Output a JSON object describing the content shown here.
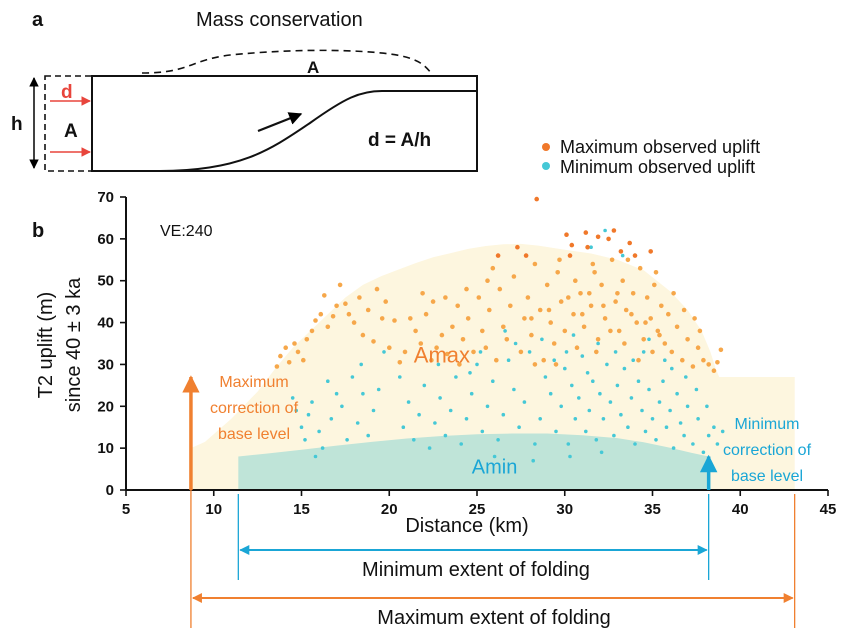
{
  "panel_a": {
    "label": "a",
    "title": "Mass conservation",
    "eq": "d = A/h",
    "lbl_h": "h",
    "lbl_d": "d",
    "lbl_A_left": "A",
    "lbl_A_top": "A"
  },
  "legend": {
    "max": "Maximum observed uplift",
    "min": "Minimum observed uplift"
  },
  "colors": {
    "max_points": "#f6a74a",
    "max_points_dark": "#f0782a",
    "min_points": "#45c8d6",
    "amax_fill": "#fdf6df",
    "amin_fill": "#bfe4d8",
    "orange": "#f08030",
    "cyan": "#1aa6d6",
    "red": "#e8453c"
  },
  "chart_data": {
    "type": "scatter",
    "panel_label": "b",
    "ylabel_line1": "T2 uplift (m)",
    "ylabel_line2": "since 40 ± 3 ka",
    "xlabel": "Distance (km)",
    "xlim": [
      5,
      45
    ],
    "ylim": [
      0,
      70
    ],
    "xticks": [
      5,
      10,
      15,
      20,
      25,
      30,
      35,
      40,
      45
    ],
    "yticks": [
      0,
      10,
      20,
      30,
      40,
      50,
      60,
      70
    ],
    "ve_label": "VE:240",
    "region_labels": {
      "amax": "Amax",
      "amin": "Amin"
    },
    "annotations": {
      "max_correction": [
        "Maximum",
        "correction of",
        "base level"
      ],
      "min_correction": [
        "Minimum",
        "correction of",
        "base level"
      ],
      "min_extent": "Minimum extent of folding",
      "max_extent": "Maximum extent of folding"
    },
    "max_extent_km": [
      8.7,
      43.1
    ],
    "min_extent_km": [
      11.4,
      38.2
    ],
    "max_correction_m": 27,
    "min_correction_m": 8,
    "amax_envelope": [
      [
        8.7,
        0
      ],
      [
        8.7,
        10
      ],
      [
        9.5,
        11.5
      ],
      [
        11,
        17
      ],
      [
        12.5,
        23.5
      ],
      [
        13.5,
        29
      ],
      [
        14.5,
        34
      ],
      [
        15.5,
        38
      ],
      [
        16.5,
        42
      ],
      [
        17.5,
        46
      ],
      [
        18.5,
        49
      ],
      [
        19.5,
        51
      ],
      [
        20.5,
        52.6
      ],
      [
        21.5,
        54.2
      ],
      [
        22.5,
        55.6
      ],
      [
        23.5,
        56.6
      ],
      [
        24.5,
        57.6
      ],
      [
        25.5,
        58.3
      ],
      [
        26.5,
        58.7
      ],
      [
        27.5,
        58.8
      ],
      [
        28.5,
        58.4
      ],
      [
        30,
        57.4
      ],
      [
        31.5,
        56.5
      ],
      [
        33,
        55
      ],
      [
        34.5,
        52.5
      ],
      [
        36,
        47.5
      ],
      [
        37,
        43
      ],
      [
        37.8,
        38
      ],
      [
        38.3,
        33
      ],
      [
        38.6,
        29
      ],
      [
        38.8,
        27
      ],
      [
        43.1,
        27
      ],
      [
        43.1,
        0
      ]
    ],
    "amin_envelope": [
      [
        11.4,
        0
      ],
      [
        11.4,
        8
      ],
      [
        13,
        8.7
      ],
      [
        15,
        9.6
      ],
      [
        17,
        10.6
      ],
      [
        19,
        11.5
      ],
      [
        21,
        12.3
      ],
      [
        23,
        12.9
      ],
      [
        25,
        13.3
      ],
      [
        27,
        13.5
      ],
      [
        29,
        13.5
      ],
      [
        31,
        13.1
      ],
      [
        33,
        12.4
      ],
      [
        34.5,
        11.4
      ],
      [
        36,
        10.1
      ],
      [
        37.2,
        8.9
      ],
      [
        38.2,
        8
      ],
      [
        38.2,
        0
      ]
    ],
    "series": [
      {
        "name": "Maximum observed uplift",
        "points": [
          [
            13.6,
            29.5
          ],
          [
            13.8,
            32
          ],
          [
            14.1,
            34
          ],
          [
            14.3,
            30.5
          ],
          [
            14.6,
            35
          ],
          [
            14.8,
            33
          ],
          [
            15.1,
            31
          ],
          [
            15.3,
            36
          ],
          [
            15.6,
            38
          ],
          [
            15.8,
            40.5
          ],
          [
            16.1,
            42
          ],
          [
            16.3,
            46.5
          ],
          [
            16.5,
            39
          ],
          [
            16.8,
            41.5
          ],
          [
            17,
            44
          ],
          [
            17.2,
            49
          ],
          [
            17.5,
            44.5
          ],
          [
            17.7,
            42
          ],
          [
            18,
            40
          ],
          [
            18.3,
            46
          ],
          [
            18.5,
            37
          ],
          [
            18.8,
            43
          ],
          [
            19.1,
            35.5
          ],
          [
            19.3,
            48
          ],
          [
            19.6,
            41
          ],
          [
            20.3,
            40.5
          ],
          [
            20.6,
            30.5
          ],
          [
            20.9,
            33
          ],
          [
            21.2,
            41
          ],
          [
            21.5,
            38
          ],
          [
            21.8,
            35
          ],
          [
            22.1,
            42
          ],
          [
            22.4,
            31
          ],
          [
            22.7,
            34
          ],
          [
            23,
            37
          ],
          [
            23.3,
            32.5
          ],
          [
            23.6,
            39
          ],
          [
            23.9,
            44
          ],
          [
            24.2,
            36
          ],
          [
            24.5,
            41
          ],
          [
            24.8,
            33
          ],
          [
            25.1,
            46
          ],
          [
            25.3,
            38
          ],
          [
            25.5,
            34
          ],
          [
            25.7,
            43
          ],
          [
            25.9,
            53
          ],
          [
            26.1,
            31
          ],
          [
            26.3,
            48
          ],
          [
            26.5,
            39
          ],
          [
            26.7,
            36
          ],
          [
            26.9,
            44
          ],
          [
            27.1,
            51
          ],
          [
            27.3,
            58
          ],
          [
            27.5,
            33
          ],
          [
            27.7,
            41
          ],
          [
            27.9,
            46
          ],
          [
            28.1,
            37
          ],
          [
            28.3,
            54
          ],
          [
            28.4,
            69.5
          ],
          [
            28.6,
            43
          ],
          [
            28.8,
            31
          ],
          [
            29,
            49
          ],
          [
            29.2,
            40
          ],
          [
            29.4,
            35
          ],
          [
            29.6,
            52
          ],
          [
            29.8,
            45
          ],
          [
            30,
            38
          ],
          [
            30.1,
            61
          ],
          [
            30.3,
            56
          ],
          [
            30.5,
            42
          ],
          [
            30.7,
            34
          ],
          [
            30.9,
            47
          ],
          [
            31.1,
            39
          ],
          [
            31.3,
            58
          ],
          [
            31.5,
            44
          ],
          [
            31.7,
            52
          ],
          [
            31.9,
            36
          ],
          [
            32.1,
            49
          ],
          [
            32.3,
            41
          ],
          [
            32.5,
            60
          ],
          [
            32.7,
            55
          ],
          [
            32.9,
            45
          ],
          [
            33.1,
            38
          ],
          [
            33.3,
            50
          ],
          [
            33.5,
            43
          ],
          [
            33.7,
            59
          ],
          [
            33.9,
            47
          ],
          [
            34.1,
            40
          ],
          [
            34.3,
            53
          ],
          [
            34.5,
            36
          ],
          [
            34.7,
            46
          ],
          [
            34.9,
            41
          ],
          [
            35.1,
            49
          ],
          [
            35.3,
            38
          ],
          [
            35.5,
            44
          ],
          [
            35.7,
            35
          ],
          [
            35.9,
            42
          ],
          [
            36.1,
            33
          ],
          [
            36.4,
            39
          ],
          [
            36.7,
            31
          ],
          [
            37,
            36
          ],
          [
            37.3,
            29.5
          ],
          [
            37.6,
            34
          ],
          [
            37.9,
            31
          ],
          [
            38.2,
            30
          ],
          [
            38.5,
            28.5
          ],
          [
            28.1,
            41
          ],
          [
            28.3,
            30
          ],
          [
            29.1,
            43
          ],
          [
            29.5,
            30
          ],
          [
            30.2,
            46
          ],
          [
            30.6,
            50
          ],
          [
            31,
            42
          ],
          [
            31.4,
            47
          ],
          [
            31.8,
            33
          ],
          [
            32.2,
            44
          ],
          [
            32.6,
            38
          ],
          [
            33,
            47
          ],
          [
            33.4,
            35
          ],
          [
            33.8,
            42
          ],
          [
            34.2,
            31
          ],
          [
            34.6,
            40
          ],
          [
            35,
            33
          ],
          [
            35.4,
            37
          ],
          [
            24,
            30
          ],
          [
            22.5,
            45
          ],
          [
            20,
            34
          ],
          [
            26.2,
            56
          ],
          [
            29.7,
            55
          ],
          [
            31.6,
            54
          ],
          [
            33.2,
            57
          ],
          [
            34,
            56
          ],
          [
            35.2,
            52
          ],
          [
            36.2,
            47
          ],
          [
            36.8,
            43
          ],
          [
            37.4,
            41
          ],
          [
            37.7,
            38
          ],
          [
            38.7,
            30.5
          ],
          [
            38.9,
            33.5
          ],
          [
            32.8,
            62
          ],
          [
            31.2,
            61.5
          ],
          [
            34.9,
            57
          ],
          [
            33.6,
            55
          ],
          [
            31.9,
            60.5
          ],
          [
            30.4,
            58.5
          ],
          [
            27.8,
            56
          ],
          [
            25.6,
            50
          ],
          [
            24.4,
            48
          ],
          [
            23.2,
            46
          ],
          [
            21.9,
            47
          ],
          [
            19.8,
            45
          ]
        ]
      },
      {
        "name": "Minimum observed uplift",
        "points": [
          [
            14.5,
            22
          ],
          [
            14.7,
            19
          ],
          [
            15,
            15
          ],
          [
            15.2,
            12
          ],
          [
            15.4,
            18
          ],
          [
            15.6,
            21
          ],
          [
            15.8,
            8
          ],
          [
            16,
            14
          ],
          [
            16.2,
            10
          ],
          [
            16.5,
            26
          ],
          [
            16.7,
            17
          ],
          [
            17,
            23
          ],
          [
            17.3,
            20
          ],
          [
            17.6,
            12
          ],
          [
            17.9,
            27
          ],
          [
            18.2,
            16
          ],
          [
            18.5,
            23
          ],
          [
            18.8,
            13
          ],
          [
            19.1,
            19
          ],
          [
            19.4,
            24
          ],
          [
            20.8,
            15
          ],
          [
            21.1,
            21
          ],
          [
            21.4,
            12
          ],
          [
            21.7,
            18
          ],
          [
            22,
            25
          ],
          [
            22.3,
            10
          ],
          [
            22.6,
            16
          ],
          [
            22.9,
            22
          ],
          [
            23.2,
            13
          ],
          [
            23.5,
            19
          ],
          [
            23.8,
            27
          ],
          [
            24.1,
            11
          ],
          [
            24.4,
            17
          ],
          [
            24.7,
            23
          ],
          [
            25,
            30
          ],
          [
            25.3,
            14
          ],
          [
            25.6,
            20
          ],
          [
            25.9,
            26
          ],
          [
            26.2,
            12
          ],
          [
            26.5,
            18
          ],
          [
            26.8,
            31
          ],
          [
            27.1,
            24
          ],
          [
            27.4,
            15
          ],
          [
            27.7,
            21
          ],
          [
            28,
            33
          ],
          [
            28.3,
            11
          ],
          [
            28.6,
            17
          ],
          [
            28.9,
            27
          ],
          [
            29.2,
            23
          ],
          [
            29.5,
            14
          ],
          [
            29.8,
            20
          ],
          [
            30,
            29
          ],
          [
            30.2,
            11
          ],
          [
            30.4,
            25
          ],
          [
            30.6,
            17
          ],
          [
            30.8,
            22
          ],
          [
            31,
            32
          ],
          [
            31.2,
            14
          ],
          [
            31.4,
            19
          ],
          [
            31.6,
            26
          ],
          [
            31.8,
            12
          ],
          [
            32,
            23
          ],
          [
            32.2,
            17
          ],
          [
            32.4,
            30
          ],
          [
            32.6,
            21
          ],
          [
            32.8,
            13
          ],
          [
            33,
            25
          ],
          [
            33.2,
            18
          ],
          [
            33.4,
            29
          ],
          [
            33.6,
            15
          ],
          [
            33.8,
            22
          ],
          [
            34,
            11
          ],
          [
            34.2,
            26
          ],
          [
            34.4,
            19
          ],
          [
            34.6,
            14
          ],
          [
            34.8,
            24
          ],
          [
            35,
            17
          ],
          [
            35.2,
            12
          ],
          [
            35.4,
            21
          ],
          [
            35.6,
            26
          ],
          [
            35.8,
            15
          ],
          [
            36,
            19
          ],
          [
            36.2,
            10
          ],
          [
            36.4,
            23
          ],
          [
            36.6,
            16
          ],
          [
            36.8,
            13
          ],
          [
            37,
            20
          ],
          [
            37.3,
            11
          ],
          [
            37.6,
            17
          ],
          [
            37.9,
            9
          ],
          [
            38.2,
            13
          ],
          [
            38.5,
            15
          ],
          [
            38.7,
            11
          ],
          [
            39,
            14
          ],
          [
            29.4,
            31
          ],
          [
            30.1,
            33
          ],
          [
            31.3,
            28
          ],
          [
            32.9,
            33
          ],
          [
            33.9,
            31
          ],
          [
            34.5,
            33
          ],
          [
            30.5,
            37
          ],
          [
            31.9,
            35
          ],
          [
            33.1,
            38
          ],
          [
            34.8,
            36
          ],
          [
            35.7,
            31
          ],
          [
            28.7,
            36
          ],
          [
            27.2,
            35
          ],
          [
            26.6,
            38
          ],
          [
            25.2,
            33
          ],
          [
            24.6,
            28
          ],
          [
            26,
            8
          ],
          [
            28.2,
            7
          ],
          [
            30.3,
            8
          ],
          [
            32.1,
            9
          ],
          [
            22.8,
            30
          ],
          [
            20.6,
            27
          ],
          [
            19.7,
            33
          ],
          [
            18.4,
            30
          ],
          [
            36.1,
            29
          ],
          [
            36.9,
            27
          ],
          [
            37.5,
            24
          ],
          [
            38.1,
            20
          ],
          [
            32.3,
            62
          ],
          [
            31.5,
            58
          ],
          [
            33.3,
            56
          ]
        ]
      }
    ]
  }
}
